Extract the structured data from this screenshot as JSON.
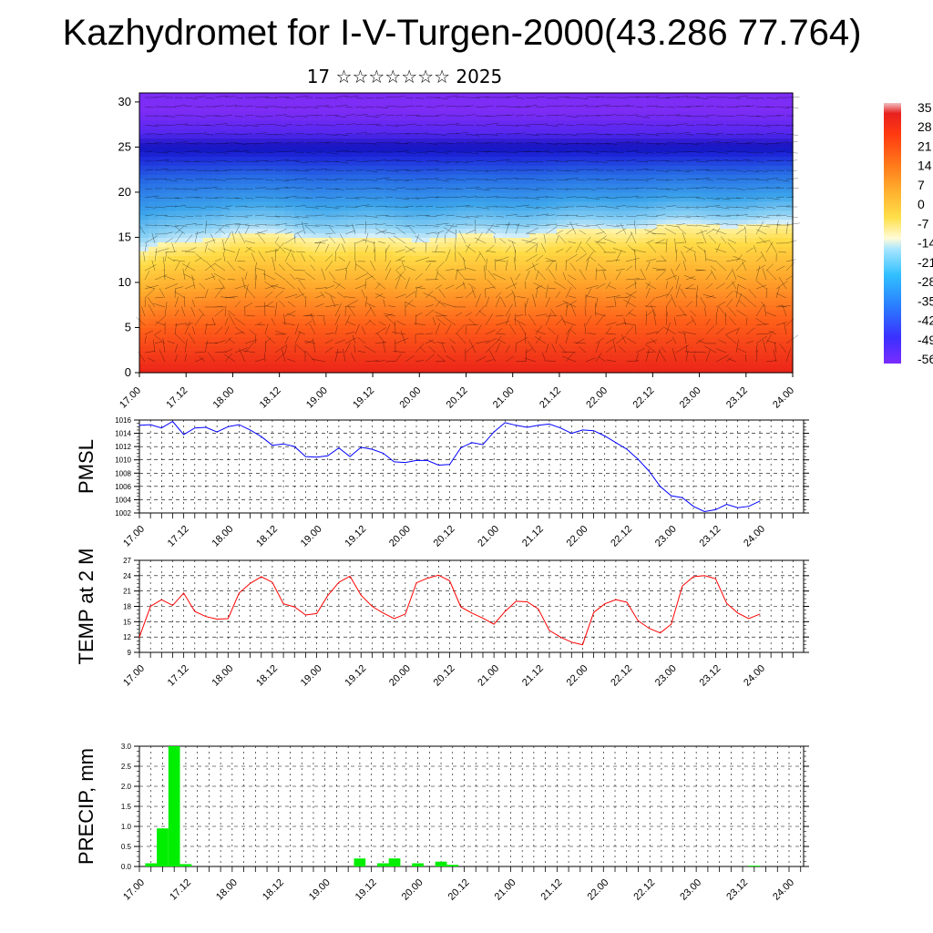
{
  "title": "Kazhydromet for I-V-Turgen-2000(43.286 77.764)",
  "subtitle": "17 ☆☆☆☆☆☆☆ 2025",
  "time_labels": [
    "17.00",
    "17.12",
    "18.00",
    "18.12",
    "19.00",
    "19.12",
    "20.00",
    "20.12",
    "21.00",
    "21.12",
    "22.00",
    "22.12",
    "23.00",
    "23.12",
    "24.00"
  ],
  "chart_data": [
    {
      "type": "heatmap",
      "title": "",
      "xlabel": "",
      "ylabel": "",
      "x_ticks": [
        "17.00",
        "17.12",
        "18.00",
        "18.12",
        "19.00",
        "19.12",
        "20.00",
        "20.12",
        "21.00",
        "21.12",
        "22.00",
        "22.12",
        "23.00",
        "23.12",
        "24.00"
      ],
      "y_ticks": [
        0,
        5,
        10,
        15,
        20,
        25,
        30
      ],
      "ylim": [
        0,
        31
      ],
      "colorbar_ticks": [
        "35",
        "28",
        "21",
        "14",
        "7",
        "0",
        "-7",
        "-14",
        "-21",
        "-28",
        "-35",
        "-42",
        "-49",
        "-56"
      ],
      "colorbar_range": [
        -56,
        35
      ],
      "freezing_level_km_by_day": [
        {
          "x": "17.00",
          "y": 13.5
        },
        {
          "x": "18.00",
          "y": 15.6
        },
        {
          "x": "19.00",
          "y": 15.0
        },
        {
          "x": "20.00",
          "y": 14.9
        },
        {
          "x": "21.00",
          "y": 15.3
        },
        {
          "x": "22.00",
          "y": 16.0
        },
        {
          "x": "23.00",
          "y": 16.4
        },
        {
          "x": "24.00",
          "y": 16.5
        }
      ],
      "overlay": "wind barbs"
    },
    {
      "type": "line",
      "ylabel": "PMSL",
      "ylim": [
        1002,
        1016
      ],
      "y_ticks": [
        1002,
        1004,
        1006,
        1008,
        1010,
        1012,
        1014,
        1016
      ],
      "x_ticks": [
        "17.00",
        "17.12",
        "18.00",
        "18.12",
        "19.00",
        "19.12",
        "20.00",
        "20.12",
        "21.00",
        "21.12",
        "22.00",
        "22.12",
        "23.00",
        "23.12",
        "24.00"
      ],
      "step_hours": 3,
      "series": [
        {
          "color": "#0000ff",
          "values": [
            1015.2,
            1015.3,
            1014.8,
            1015.8,
            1013.8,
            1014.8,
            1014.9,
            1014.2,
            1015.0,
            1015.3,
            1014.5,
            1013.5,
            1012.2,
            1012.4,
            1012.0,
            1010.5,
            1010.4,
            1010.6,
            1011.8,
            1010.5,
            1011.9,
            1011.6,
            1011.0,
            1009.7,
            1009.6,
            1009.9,
            1009.9,
            1009.2,
            1009.3,
            1011.8,
            1012.6,
            1012.3,
            1014.2,
            1015.6,
            1015.2,
            1014.9,
            1015.2,
            1015.4,
            1014.8,
            1014.0,
            1014.5,
            1014.4,
            1013.6,
            1012.6,
            1011.6,
            1010.1,
            1008.3,
            1006.0,
            1004.6,
            1004.3,
            1003.0,
            1002.2,
            1002.5,
            1003.3,
            1002.8,
            1003.0,
            1003.8
          ]
        }
      ]
    },
    {
      "type": "line",
      "ylabel": "TEMP at 2 M",
      "ylim": [
        9,
        27
      ],
      "y_ticks": [
        9,
        12,
        15,
        18,
        21,
        24,
        27
      ],
      "x_ticks": [
        "17.00",
        "17.12",
        "18.00",
        "18.12",
        "19.00",
        "19.12",
        "20.00",
        "20.12",
        "21.00",
        "21.12",
        "22.00",
        "22.12",
        "23.00",
        "23.12",
        "24.00"
      ],
      "step_hours": 3,
      "series": [
        {
          "color": "#ff0000",
          "values": [
            12.0,
            18.0,
            19.3,
            18.2,
            20.6,
            17.0,
            16.0,
            15.5,
            15.6,
            20.6,
            22.5,
            23.8,
            22.7,
            18.5,
            17.9,
            16.3,
            16.6,
            20.1,
            22.7,
            23.9,
            20.2,
            18.0,
            16.7,
            15.6,
            16.5,
            22.6,
            23.5,
            24.1,
            23.0,
            17.9,
            16.7,
            15.7,
            14.5,
            17.0,
            19.0,
            18.9,
            17.5,
            13.3,
            12.0,
            11.0,
            10.5,
            16.8,
            18.5,
            19.3,
            18.8,
            15.2,
            13.7,
            12.8,
            14.5,
            22.0,
            23.8,
            24.0,
            23.4,
            18.6,
            16.7,
            15.6,
            16.5
          ]
        }
      ]
    },
    {
      "type": "bar",
      "ylabel": "PRECIP, mm",
      "ylim": [
        0,
        3
      ],
      "y_ticks": [
        "0.0",
        "0.5",
        "1.0",
        "1.5",
        "2.0",
        "2.5",
        "3.0"
      ],
      "x_ticks": [
        "17.00",
        "17.12",
        "18.00",
        "18.12",
        "19.00",
        "19.12",
        "20.00",
        "20.12",
        "21.00",
        "21.12",
        "22.00",
        "22.12",
        "23.00",
        "23.12",
        "24.00"
      ],
      "bar_color": "#00ee00",
      "step_hours": 3,
      "x": [
        1,
        2,
        3,
        4,
        19,
        21,
        22,
        24,
        26,
        27,
        53
      ],
      "values": [
        0.08,
        0.95,
        3.0,
        0.06,
        0.2,
        0.08,
        0.2,
        0.08,
        0.12,
        0.04,
        0.02
      ]
    }
  ]
}
